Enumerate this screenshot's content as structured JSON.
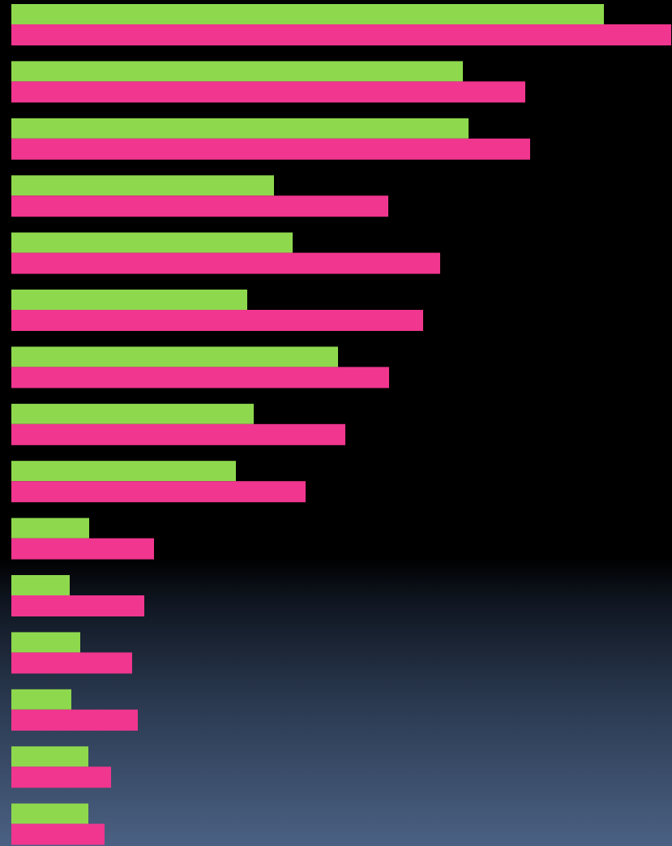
{
  "chart_data": {
    "type": "barh",
    "categories": [
      null,
      null,
      null,
      null,
      null,
      null,
      null,
      null,
      null,
      null,
      null,
      null,
      null,
      null,
      null
    ],
    "series": [
      {
        "color": "#8ed84e",
        "values": [
          731,
          557,
          564,
          324,
          347,
          291,
          403,
          299,
          277,
          96,
          72,
          85,
          74,
          95,
          95
        ]
      },
      {
        "color": "#f0368e",
        "values": [
          814,
          634,
          640,
          465,
          529,
          508,
          466,
          412,
          363,
          176,
          164,
          149,
          156,
          123,
          115
        ]
      }
    ],
    "xlim": [
      0,
      815
    ]
  }
}
